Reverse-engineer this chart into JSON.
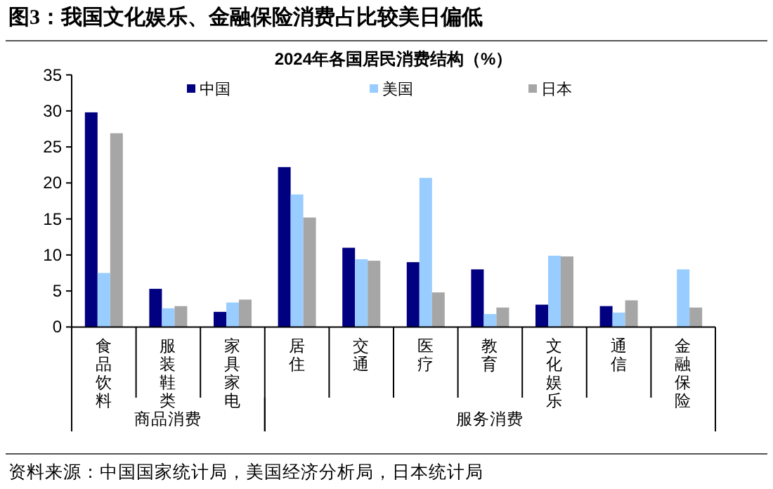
{
  "chart_data": {
    "type": "bar",
    "title": "图3：我国文化娱乐、金融保险消费占比较美日偏低",
    "subtitle": "2024年各国居民消费结构（%）",
    "categories": [
      "食品饮料",
      "服装鞋类",
      "家具家电",
      "居住",
      "交通",
      "医疗",
      "教育",
      "文化娱乐",
      "通信",
      "金融保险"
    ],
    "series": [
      {
        "name": "中国",
        "color": "#000080",
        "values": [
          29.8,
          5.3,
          2.1,
          22.2,
          11.0,
          9.0,
          8.0,
          3.1,
          2.9,
          null
        ]
      },
      {
        "name": "美国",
        "color": "#99ccff",
        "values": [
          7.5,
          2.6,
          3.4,
          18.4,
          9.4,
          20.7,
          1.8,
          9.9,
          2.0,
          8.0
        ]
      },
      {
        "name": "日本",
        "color": "#a6a6a6",
        "values": [
          26.9,
          2.9,
          3.8,
          15.2,
          9.2,
          4.8,
          2.7,
          9.8,
          3.7,
          2.7
        ]
      }
    ],
    "ylim": [
      0,
      35
    ],
    "yticks": [
      0,
      5,
      10,
      15,
      20,
      25,
      30,
      35
    ],
    "grid": false,
    "legend": "top",
    "annotations": [
      "商品消费",
      "服务消费",
      "资料来源：中国国家统计局，美国经济分析局，日本统计局"
    ]
  }
}
